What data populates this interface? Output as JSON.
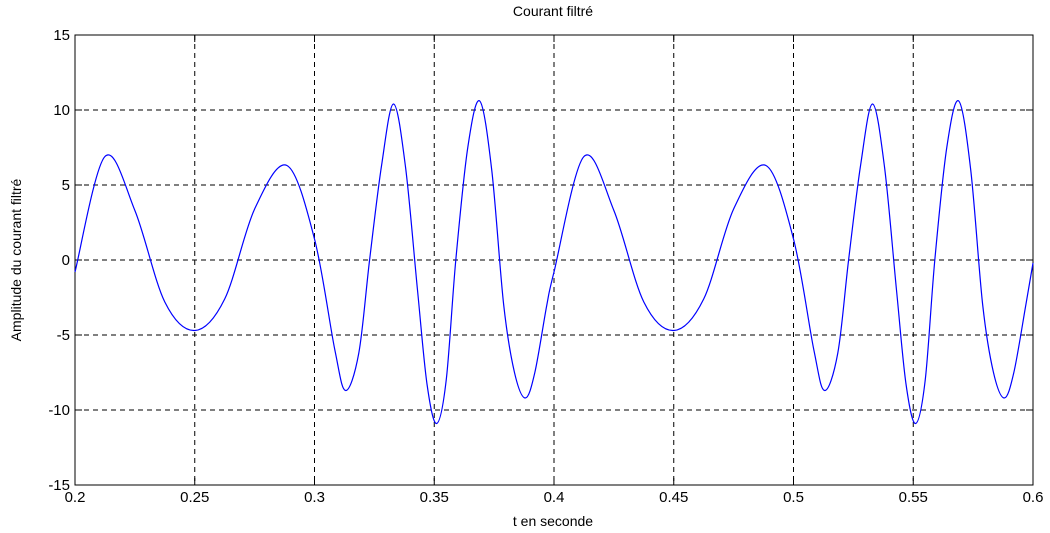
{
  "chart_data": {
    "type": "line",
    "title": "Courant filtré",
    "xlabel": "t en seconde",
    "ylabel": "Amplitude du courant filtré",
    "xlim": [
      0.2,
      0.6
    ],
    "ylim": [
      -15,
      15
    ],
    "xticks": [
      "0.2",
      "0.25",
      "0.3",
      "0.35",
      "0.4",
      "0.45",
      "0.5",
      "0.55",
      "0.6"
    ],
    "yticks": [
      "15",
      "10",
      "5",
      "0",
      "-5",
      "-10",
      "-15"
    ],
    "grid": true,
    "grid_style": "dashed",
    "colors": {
      "line": "#0000ff",
      "grid": "#000000",
      "axes": "#000000"
    },
    "series": [
      {
        "x": [
          0.2,
          0.2125,
          0.225,
          0.2375,
          0.25,
          0.2625,
          0.275,
          0.2885,
          0.3,
          0.3085,
          0.313,
          0.3185,
          0.323,
          0.328,
          0.333,
          0.338,
          0.343,
          0.347,
          0.351,
          0.355,
          0.359,
          0.364,
          0.369,
          0.374,
          0.379,
          0.3835,
          0.388,
          0.392,
          0.397,
          0.4,
          0.4125,
          0.425,
          0.4375,
          0.45,
          0.4625,
          0.475,
          0.4885,
          0.5,
          0.5085,
          0.513,
          0.5185,
          0.523,
          0.528,
          0.533,
          0.538,
          0.543,
          0.547,
          0.551,
          0.555,
          0.559,
          0.564,
          0.569,
          0.574,
          0.579,
          0.5835,
          0.588,
          0.592,
          0.597,
          0.6
        ],
        "y": [
          -0.8,
          6.9,
          3.3,
          -2.8,
          -4.7,
          -2.6,
          3.4,
          6.3,
          1.4,
          -6.0,
          -8.7,
          -6.2,
          0.0,
          6.3,
          10.4,
          6.2,
          -2.0,
          -8.3,
          -10.9,
          -8.0,
          0.0,
          7.5,
          10.6,
          6.0,
          -3.0,
          -7.5,
          -9.2,
          -7.5,
          -3.0,
          -0.8,
          6.9,
          3.3,
          -2.8,
          -4.7,
          -2.6,
          3.4,
          6.3,
          1.4,
          -6.0,
          -8.7,
          -6.2,
          0.0,
          6.3,
          10.4,
          6.2,
          -2.0,
          -8.3,
          -10.9,
          -8.0,
          0.0,
          7.5,
          10.6,
          6.0,
          -3.0,
          -7.5,
          -9.2,
          -7.5,
          -3.0,
          -0.2
        ]
      }
    ]
  }
}
